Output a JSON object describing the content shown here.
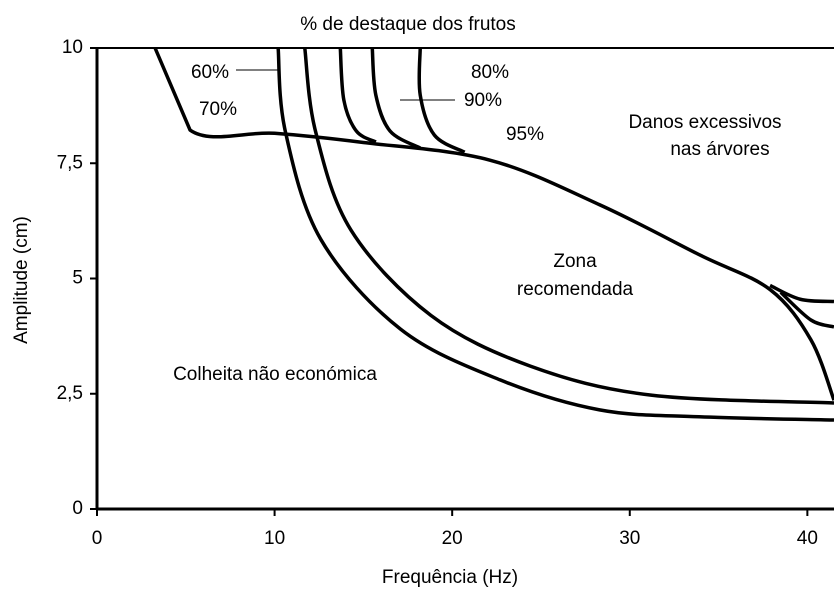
{
  "chart_data": {
    "type": "line",
    "title": "% de destaque dos frutos",
    "x_label": "Frequência (Hz)",
    "y_label": "Amplitude (cm)",
    "annotations": [
      "60%",
      "70%",
      "80%",
      "90%",
      "95%",
      "Danos excessivos",
      "nas árvores",
      "Zona",
      "recomendada",
      "Colheita não económica"
    ],
    "color": "#000000",
    "xlim": [
      0,
      41.5
    ],
    "ylim": [
      0,
      10
    ],
    "xticks": [
      0,
      10,
      20,
      30,
      40
    ],
    "yticks": [
      0,
      {
        "value": 2.5,
        "label": "2,5"
      },
      5,
      {
        "value": 7.5,
        "label": "7,5"
      },
      10
    ],
    "series": [
      {
        "x": [
          3.27,
          5.24,
          10,
          15,
          22.1,
          28.3,
          34,
          37.9,
          40.2,
          41.5
        ],
        "values": [
          10,
          8.22,
          8.15,
          7.95,
          7.57,
          6.6,
          5.5,
          4.76,
          3.67,
          2.36
        ]
      },
      {
        "x": [
          10.2,
          10.6,
          12.6,
          17.1,
          22.7,
          28.3,
          33.9,
          41.5
        ],
        "values": [
          10,
          8.2,
          5.85,
          3.9,
          2.8,
          2.15,
          2.0,
          1.93
        ]
      },
      {
        "x": [
          11.7,
          12.3,
          14.3,
          18.8,
          24.4,
          31.2,
          41.5
        ],
        "values": [
          10,
          8.2,
          6.05,
          4.2,
          3.1,
          2.47,
          2.3
        ]
      },
      {
        "x": [
          13.7,
          13.9,
          14.6,
          15.7
        ],
        "values": [
          10,
          8.87,
          8.2,
          7.96
        ]
      },
      {
        "x": [
          15.5,
          15.7,
          16.5,
          18.2
        ],
        "values": [
          10,
          8.98,
          8.2,
          7.83
        ]
      },
      {
        "x": [
          18.2,
          18.2,
          19.0,
          20.7
        ],
        "values": [
          10,
          8.98,
          8.11,
          7.74
        ]
      },
      {
        "x": [
          37.9,
          39.6,
          41.5
        ],
        "values": [
          4.85,
          4.55,
          4.5
        ]
      },
      {
        "x": [
          38.5,
          40.2,
          41.5
        ],
        "values": [
          4.7,
          4.1,
          3.95
        ]
      }
    ]
  }
}
